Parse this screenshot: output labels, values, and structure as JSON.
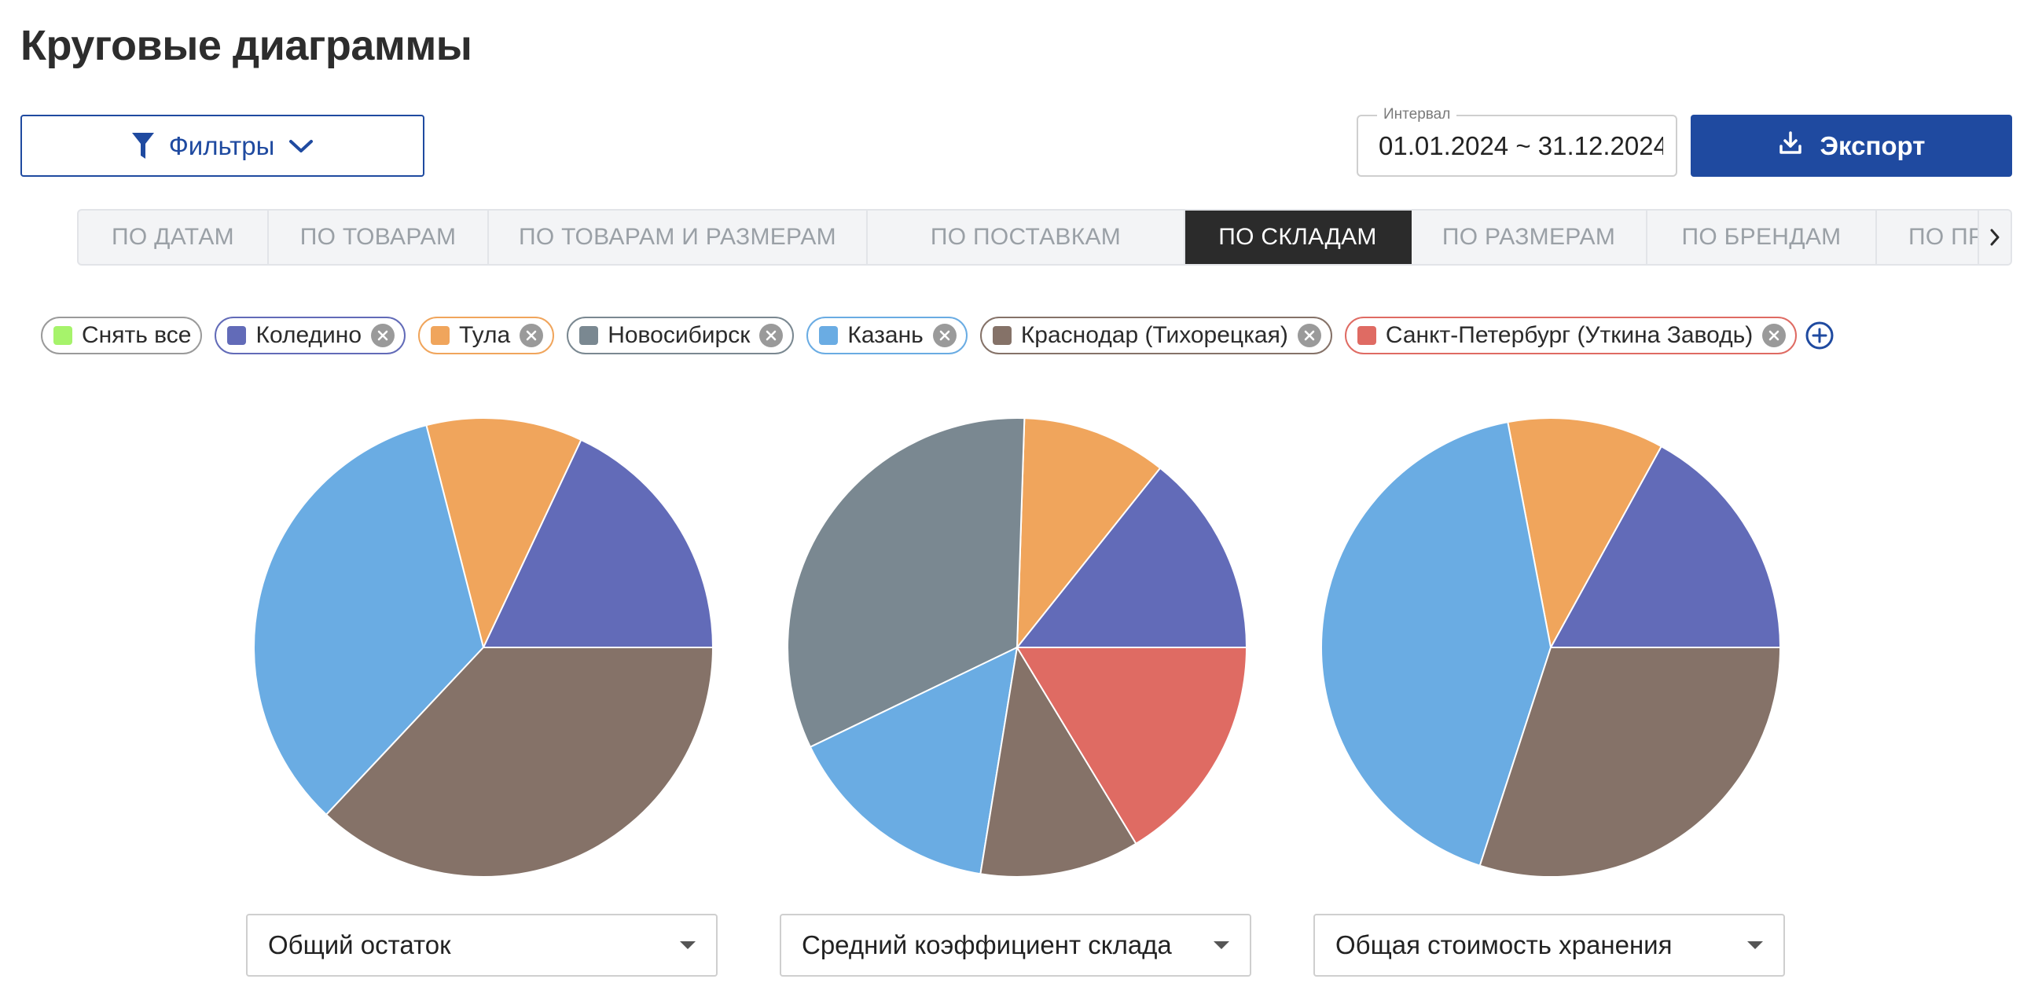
{
  "page": {
    "title": "Круговые диаграммы"
  },
  "toolbar": {
    "filters_label": "Фильтры",
    "interval_label": "Интервал",
    "interval_value": "01.01.2024 ~ 31.12.2024",
    "export_label": "Экспорт"
  },
  "tabs": [
    {
      "label": "ПО ДАТАМ",
      "active": false
    },
    {
      "label": "ПО ТОВАРАМ",
      "active": false
    },
    {
      "label": "ПО ТОВАРАМ И РАЗМЕРАМ",
      "active": false
    },
    {
      "label": "ПО ПОСТАВКАМ",
      "active": false
    },
    {
      "label": "ПО СКЛАДАМ",
      "active": true
    },
    {
      "label": "ПО РАЗМЕРАМ",
      "active": false
    },
    {
      "label": "ПО БРЕНДАМ",
      "active": false
    },
    {
      "label": "ПО ПРЕДМЕТАМ",
      "active": false
    }
  ],
  "chips": {
    "clear_all": {
      "label": "Снять все",
      "color": "#a6f36b"
    },
    "items": [
      {
        "label": "Коледино",
        "color": "#626bb8"
      },
      {
        "label": "Тула",
        "color": "#f0a55c"
      },
      {
        "label": "Новосибирск",
        "color": "#7a8891"
      },
      {
        "label": "Казань",
        "color": "#6aace3"
      },
      {
        "label": "Краснодар (Тихорецкая)",
        "color": "#857268"
      },
      {
        "label": "Санкт-Петербург (Уткина Заводь)",
        "color": "#df6b63"
      }
    ]
  },
  "selects": [
    "Общий остаток",
    "Средний коэффициент склада",
    "Общая стоимость хранения"
  ],
  "chart_data": [
    {
      "type": "pie",
      "title": "",
      "series": [
        {
          "name": "Коледино",
          "value": 18,
          "color": "#626bb8"
        },
        {
          "name": "Тула",
          "value": 11,
          "color": "#f0a55c"
        },
        {
          "name": "Новосибирск",
          "value": 0,
          "color": "#7a8891"
        },
        {
          "name": "Казань",
          "value": 34,
          "color": "#6aace3"
        },
        {
          "name": "Краснодар (Тихорецкая)",
          "value": 37,
          "color": "#857268"
        },
        {
          "name": "Санкт-Петербург (Уткина Заводь)",
          "value": 0,
          "color": "#df6b63"
        }
      ]
    },
    {
      "type": "pie",
      "title": "",
      "series": [
        {
          "name": "Коледино",
          "value": 14,
          "color": "#626bb8"
        },
        {
          "name": "Тула",
          "value": 10,
          "color": "#f0a55c"
        },
        {
          "name": "Новосибирск",
          "value": 32,
          "color": "#7a8891"
        },
        {
          "name": "Казань",
          "value": 15,
          "color": "#6aace3"
        },
        {
          "name": "Краснодар (Тихорецкая)",
          "value": 11,
          "color": "#857268"
        },
        {
          "name": "Санкт-Петербург (Уткина Заводь)",
          "value": 16,
          "color": "#df6b63"
        }
      ]
    },
    {
      "type": "pie",
      "title": "",
      "series": [
        {
          "name": "Коледино",
          "value": 17,
          "color": "#626bb8"
        },
        {
          "name": "Тула",
          "value": 11,
          "color": "#f0a55c"
        },
        {
          "name": "Новосибирск",
          "value": 0,
          "color": "#7a8891"
        },
        {
          "name": "Казань",
          "value": 42,
          "color": "#6aace3"
        },
        {
          "name": "Краснодар (Тихорецкая)",
          "value": 30,
          "color": "#857268"
        },
        {
          "name": "Санкт-Петербург (Уткина Заводь)",
          "value": 0,
          "color": "#df6b63"
        }
      ]
    }
  ]
}
